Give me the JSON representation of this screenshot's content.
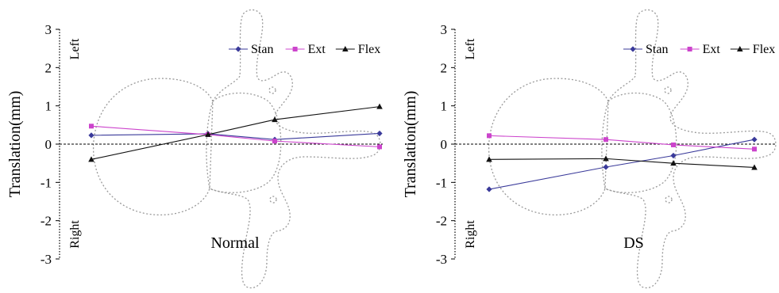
{
  "chart_data": [
    {
      "type": "line",
      "title": "Normal",
      "ylabel": "Translation(mm)",
      "ylim": [
        -3,
        3
      ],
      "yticks": [
        "3",
        "2",
        "1",
        "0",
        "-1",
        "-2",
        "-3"
      ],
      "side_labels": {
        "top": "Left",
        "bottom": "Right"
      },
      "zero_line": true,
      "legend": "top-right",
      "x": [
        1,
        2,
        3,
        4
      ],
      "series": [
        {
          "name": "Stan",
          "color": "#3a3a9a",
          "marker": "diamond",
          "values": [
            0.23,
            0.27,
            0.12,
            0.28
          ]
        },
        {
          "name": "Ext",
          "color": "#cc44cc",
          "marker": "square",
          "values": [
            0.47,
            0.25,
            0.08,
            -0.07
          ]
        },
        {
          "name": "Flex",
          "color": "#111111",
          "marker": "triangle",
          "values": [
            -0.4,
            0.25,
            0.64,
            0.98
          ]
        }
      ]
    },
    {
      "type": "line",
      "title": "DS",
      "ylabel": "Translation(mm)",
      "ylim": [
        -3,
        3
      ],
      "yticks": [
        "3",
        "2",
        "1",
        "0",
        "-1",
        "-2",
        "-3"
      ],
      "side_labels": {
        "top": "Left",
        "bottom": "Right"
      },
      "zero_line": true,
      "legend": "top-right",
      "x": [
        1,
        2,
        3,
        4
      ],
      "series": [
        {
          "name": "Stan",
          "color": "#3a3a9a",
          "marker": "diamond",
          "values": [
            -1.18,
            -0.6,
            -0.3,
            0.12
          ]
        },
        {
          "name": "Ext",
          "color": "#cc44cc",
          "marker": "square",
          "values": [
            0.22,
            0.12,
            -0.02,
            -0.13
          ]
        },
        {
          "name": "Flex",
          "color": "#111111",
          "marker": "triangle",
          "values": [
            -0.4,
            -0.38,
            -0.5,
            -0.61
          ]
        }
      ]
    }
  ]
}
